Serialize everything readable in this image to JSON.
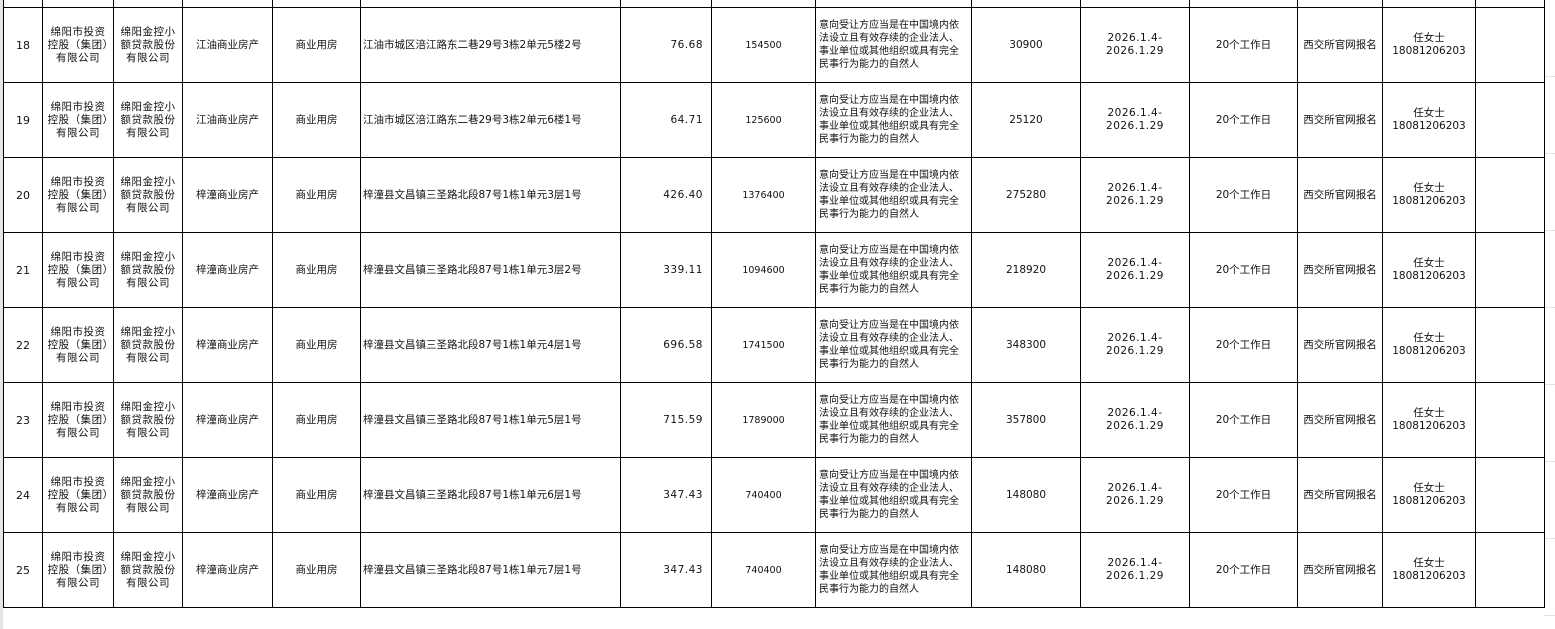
{
  "rows": [
    {
      "no": "",
      "transferor": "",
      "company": "",
      "project": "",
      "use": "",
      "address": "",
      "area": "",
      "price": "",
      "requirement": "",
      "deposit": "",
      "period": "",
      "duration": "",
      "signup": "",
      "contact_name": "",
      "contact_phone": ""
    },
    {
      "no": "18",
      "transferor": "绵阳市投资控股（集团）有限公司",
      "company": "绵阳金控小额贷款股份有限公司",
      "project": "江油商业房产",
      "use": "商业用房",
      "address": "江油市城区涪江路东二巷29号3栋2单元5楼2号",
      "area": "76.68",
      "price": "154500",
      "requirement": "意向受让方应当是在中国境内依法设立且有效存续的企业法人、事业单位或其他组织或具有完全民事行为能力的自然人",
      "deposit": "30900",
      "period": "2026.1.4-2026.1.29",
      "duration": "20个工作日",
      "signup": "西交所官网报名",
      "contact_name": "任女士",
      "contact_phone": "18081206203"
    },
    {
      "no": "19",
      "transferor": "绵阳市投资控股（集团）有限公司",
      "company": "绵阳金控小额贷款股份有限公司",
      "project": "江油商业房产",
      "use": "商业用房",
      "address": "江油市城区涪江路东二巷29号3栋2单元6楼1号",
      "area": "64.71",
      "price": "125600",
      "requirement": "意向受让方应当是在中国境内依法设立且有效存续的企业法人、事业单位或其他组织或具有完全民事行为能力的自然人",
      "deposit": "25120",
      "period": "2026.1.4-2026.1.29",
      "duration": "20个工作日",
      "signup": "西交所官网报名",
      "contact_name": "任女士",
      "contact_phone": "18081206203"
    },
    {
      "no": "20",
      "transferor": "绵阳市投资控股（集团）有限公司",
      "company": "绵阳金控小额贷款股份有限公司",
      "project": "梓潼商业房产",
      "use": "商业用房",
      "address": "梓潼县文昌镇三圣路北段87号1栋1单元3层1号",
      "area": "426.40",
      "price": "1376400",
      "requirement": "意向受让方应当是在中国境内依法设立且有效存续的企业法人、事业单位或其他组织或具有完全民事行为能力的自然人",
      "deposit": "275280",
      "period": "2026.1.4-2026.1.29",
      "duration": "20个工作日",
      "signup": "西交所官网报名",
      "contact_name": "任女士",
      "contact_phone": "18081206203"
    },
    {
      "no": "21",
      "transferor": "绵阳市投资控股（集团）有限公司",
      "company": "绵阳金控小额贷款股份有限公司",
      "project": "梓潼商业房产",
      "use": "商业用房",
      "address": "梓潼县文昌镇三圣路北段87号1栋1单元3层2号",
      "area": "339.11",
      "price": "1094600",
      "requirement": "意向受让方应当是在中国境内依法设立且有效存续的企业法人、事业单位或其他组织或具有完全民事行为能力的自然人",
      "deposit": "218920",
      "period": "2026.1.4-2026.1.29",
      "duration": "20个工作日",
      "signup": "西交所官网报名",
      "contact_name": "任女士",
      "contact_phone": "18081206203"
    },
    {
      "no": "22",
      "transferor": "绵阳市投资控股（集团）有限公司",
      "company": "绵阳金控小额贷款股份有限公司",
      "project": "梓潼商业房产",
      "use": "商业用房",
      "address": "梓潼县文昌镇三圣路北段87号1栋1单元4层1号",
      "area": "696.58",
      "price": "1741500",
      "requirement": "意向受让方应当是在中国境内依法设立且有效存续的企业法人、事业单位或其他组织或具有完全民事行为能力的自然人",
      "deposit": "348300",
      "period": "2026.1.4-2026.1.29",
      "duration": "20个工作日",
      "signup": "西交所官网报名",
      "contact_name": "任女士",
      "contact_phone": "18081206203"
    },
    {
      "no": "23",
      "transferor": "绵阳市投资控股（集团）有限公司",
      "company": "绵阳金控小额贷款股份有限公司",
      "project": "梓潼商业房产",
      "use": "商业用房",
      "address": "梓潼县文昌镇三圣路北段87号1栋1单元5层1号",
      "area": "715.59",
      "price": "1789000",
      "requirement": "意向受让方应当是在中国境内依法设立且有效存续的企业法人、事业单位或其他组织或具有完全民事行为能力的自然人",
      "deposit": "357800",
      "period": "2026.1.4-2026.1.29",
      "duration": "20个工作日",
      "signup": "西交所官网报名",
      "contact_name": "任女士",
      "contact_phone": "18081206203"
    },
    {
      "no": "24",
      "transferor": "绵阳市投资控股（集团）有限公司",
      "company": "绵阳金控小额贷款股份有限公司",
      "project": "梓潼商业房产",
      "use": "商业用房",
      "address": "梓潼县文昌镇三圣路北段87号1栋1单元6层1号",
      "area": "347.43",
      "price": "740400",
      "requirement": "意向受让方应当是在中国境内依法设立且有效存续的企业法人、事业单位或其他组织或具有完全民事行为能力的自然人",
      "deposit": "148080",
      "period": "2026.1.4-2026.1.29",
      "duration": "20个工作日",
      "signup": "西交所官网报名",
      "contact_name": "任女士",
      "contact_phone": "18081206203"
    },
    {
      "no": "25",
      "transferor": "绵阳市投资控股（集团）有限公司",
      "company": "绵阳金控小额贷款股份有限公司",
      "project": "梓潼商业房产",
      "use": "商业用房",
      "address": "梓潼县文昌镇三圣路北段87号1栋1单元7层1号",
      "area": "347.43",
      "price": "740400",
      "requirement": "意向受让方应当是在中国境内依法设立且有效存续的企业法人、事业单位或其他组织或具有完全民事行为能力的自然人",
      "deposit": "148080",
      "period": "2026.1.4-2026.1.29",
      "duration": "20个工作日",
      "signup": "西交所官网报名",
      "contact_name": "任女士",
      "contact_phone": "18081206203"
    }
  ]
}
